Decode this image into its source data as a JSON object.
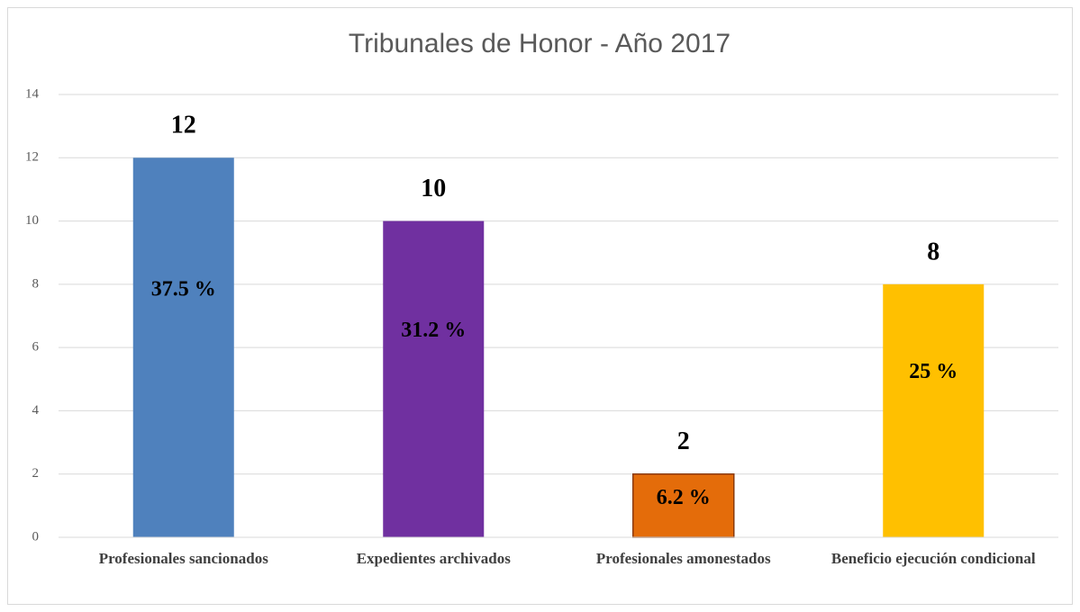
{
  "chart_data": {
    "type": "bar",
    "title": "Tribunales de Honor - Año 2017",
    "categories": [
      "Profesionales sancionados",
      "Expedientes archivados",
      "Profesionales amonestados",
      "Beneficio ejecución condicional"
    ],
    "values": [
      12,
      10,
      2,
      8
    ],
    "share_labels": [
      "37.5 %",
      "31.2 %",
      "6.2 %",
      "25 %"
    ],
    "colors": [
      "#4f81bd",
      "#7030a0",
      "#e46c0a",
      "#ffc000"
    ],
    "ylim": [
      0,
      14
    ],
    "yticks": [
      0,
      2,
      4,
      6,
      8,
      10,
      12,
      14
    ],
    "grid": true
  }
}
